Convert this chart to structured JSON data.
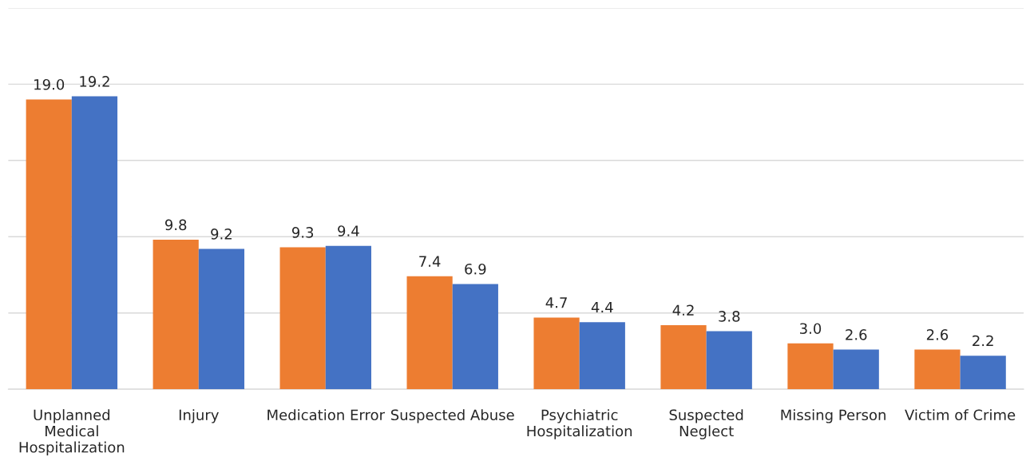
{
  "chart_data": {
    "type": "bar",
    "categories": [
      "Unplanned\nMedical\nHospitalization",
      "Injury",
      "Medication Error",
      "Suspected Abuse",
      "Psychiatric\nHospitalization",
      "Suspected\nNeglect",
      "Missing Person",
      "Victim of Crime"
    ],
    "series": [
      {
        "color": "#ed7d31",
        "values": [
          19.0,
          9.8,
          9.3,
          7.4,
          4.7,
          4.2,
          3.0,
          2.6
        ],
        "value_labels": [
          "19.0",
          "9.8",
          "9.3",
          "7.4",
          "4.7",
          "4.2",
          "3.0",
          "2.6"
        ]
      },
      {
        "color": "#4472c4",
        "values": [
          19.2,
          9.2,
          9.4,
          6.9,
          4.4,
          3.8,
          2.6,
          2.2
        ],
        "value_labels": [
          "19.2",
          "9.2",
          "9.4",
          "6.9",
          "4.4",
          "3.8",
          "2.6",
          "2.2"
        ]
      }
    ],
    "ylim": [
      0,
      25
    ],
    "yticks": [
      {
        "value": 0,
        "label": null
      },
      {
        "value": 5,
        "label": null
      },
      {
        "value": 10,
        "label": null
      },
      {
        "value": 15,
        "label": null
      },
      {
        "value": 20,
        "label": null
      },
      {
        "value": 25,
        "label": null
      }
    ],
    "tick_labels": "x",
    "grid": "y",
    "legend": false
  }
}
